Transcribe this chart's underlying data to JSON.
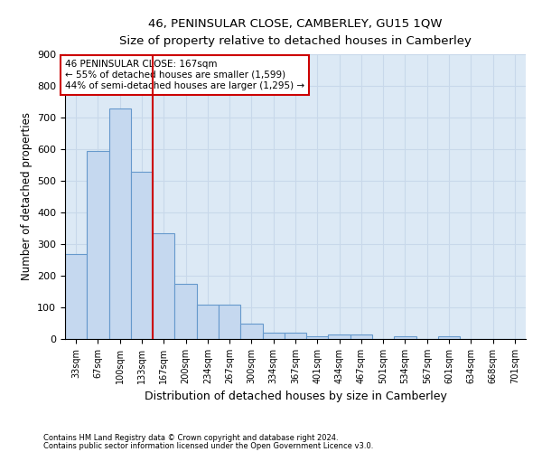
{
  "title": "46, PENINSULAR CLOSE, CAMBERLEY, GU15 1QW",
  "subtitle": "Size of property relative to detached houses in Camberley",
  "xlabel": "Distribution of detached houses by size in Camberley",
  "ylabel": "Number of detached properties",
  "footnote1": "Contains HM Land Registry data © Crown copyright and database right 2024.",
  "footnote2": "Contains public sector information licensed under the Open Government Licence v3.0.",
  "bar_color": "#c5d8ef",
  "bar_edge_color": "#6699cc",
  "grid_color": "#c8d8ea",
  "bg_color": "#dce9f5",
  "vline_color": "#cc0000",
  "vline_index": 4,
  "annotation_text": "46 PENINSULAR CLOSE: 167sqm\n← 55% of detached houses are smaller (1,599)\n44% of semi-detached houses are larger (1,295) →",
  "annotation_box_color": "#ffffff",
  "annotation_box_edge": "#cc0000",
  "categories": [
    "33sqm",
    "67sqm",
    "100sqm",
    "133sqm",
    "167sqm",
    "200sqm",
    "234sqm",
    "267sqm",
    "300sqm",
    "334sqm",
    "367sqm",
    "401sqm",
    "434sqm",
    "467sqm",
    "501sqm",
    "534sqm",
    "567sqm",
    "601sqm",
    "634sqm",
    "668sqm",
    "701sqm"
  ],
  "values": [
    270,
    595,
    730,
    530,
    335,
    175,
    110,
    110,
    50,
    20,
    20,
    10,
    15,
    15,
    0,
    10,
    0,
    10,
    0,
    0,
    0
  ],
  "ylim": [
    0,
    900
  ],
  "yticks": [
    0,
    100,
    200,
    300,
    400,
    500,
    600,
    700,
    800,
    900
  ]
}
